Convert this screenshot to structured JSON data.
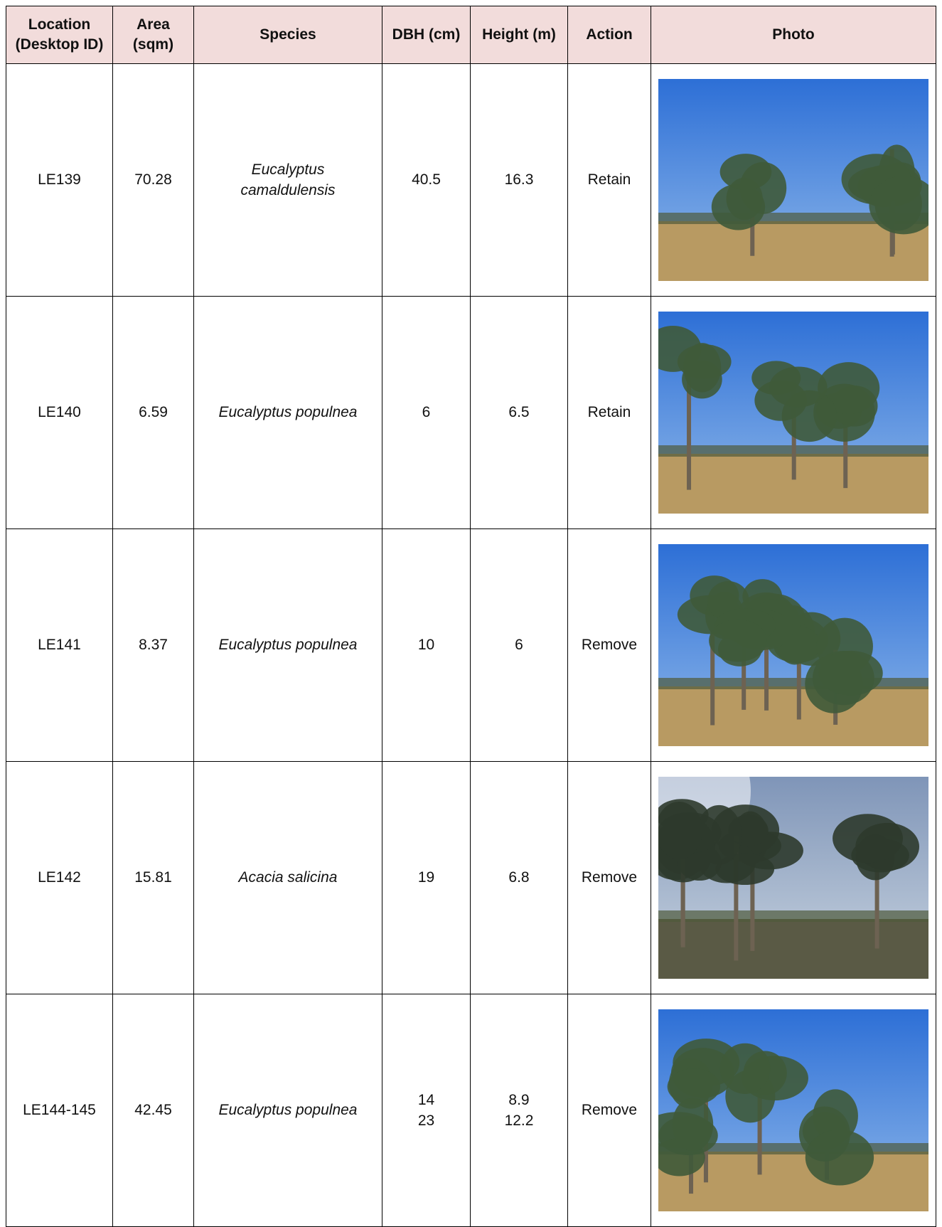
{
  "table": {
    "header": [
      "Location\n(Desktop ID)",
      "Area\n(sqm)",
      "Species",
      "DBH (cm)",
      "Height (m)",
      "Action",
      "Photo"
    ],
    "rows": [
      {
        "location": "LE139",
        "area": 70.28,
        "species": "Eucalyptus camaldulensis",
        "dbh": [
          40.5
        ],
        "height": [
          16.3
        ],
        "action": "Retain"
      },
      {
        "location": "LE140",
        "area": 6.59,
        "species": "Eucalyptus populnea",
        "dbh": [
          6
        ],
        "height": [
          6.5
        ],
        "action": "Retain"
      },
      {
        "location": "LE141",
        "area": 8.37,
        "species": "Eucalyptus populnea",
        "dbh": [
          10
        ],
        "height": [
          6
        ],
        "action": "Remove"
      },
      {
        "location": "LE142",
        "area": 15.81,
        "species": "Acacia salicina",
        "dbh": [
          19
        ],
        "height": [
          6.8
        ],
        "action": "Remove"
      },
      {
        "location": "LE144-145",
        "area": 42.45,
        "species": "Eucalyptus populnea",
        "dbh": [
          14,
          23
        ],
        "height": [
          8.9,
          12.2
        ],
        "action": "Remove"
      }
    ]
  }
}
